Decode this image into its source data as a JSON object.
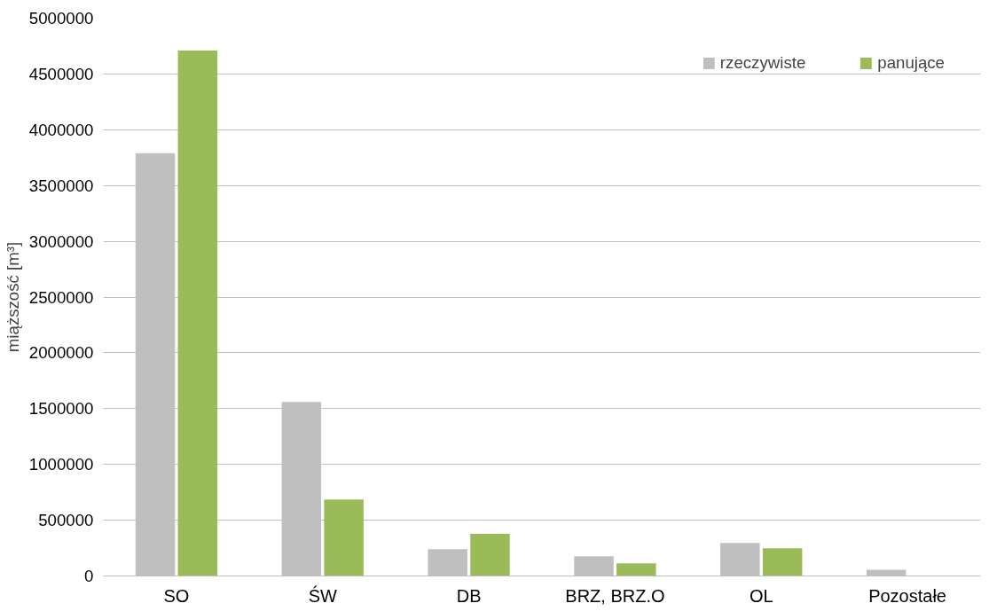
{
  "chart_data": {
    "type": "bar",
    "ylabel": "miąższość [m³]",
    "categories": [
      "SO",
      "ŚW",
      "DB",
      "BRZ, BRZ.O",
      "OL",
      "Pozostałe"
    ],
    "series": [
      {
        "name": "rzeczywiste",
        "color": "#bfbfbf",
        "values": [
          3790000,
          1560000,
          241000,
          177000,
          297000,
          56000
        ]
      },
      {
        "name": "panujące",
        "color": "#9bbb59",
        "values": [
          4710000,
          685000,
          378000,
          113000,
          249000,
          0
        ]
      }
    ],
    "ylim": [
      0,
      5000000
    ],
    "yticks": [
      0,
      500000,
      1000000,
      1500000,
      2000000,
      2500000,
      3000000,
      3500000,
      4000000,
      4500000,
      5000000
    ],
    "grid": "y",
    "legend": "top right"
  }
}
